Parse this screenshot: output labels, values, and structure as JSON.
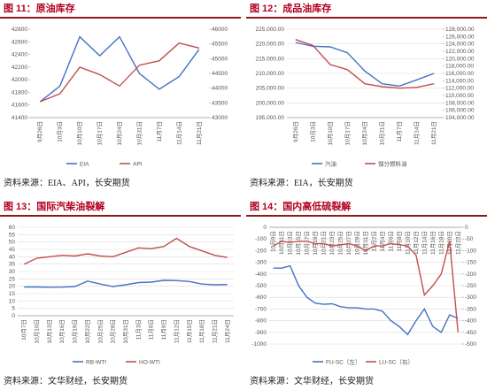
{
  "chart_data": [
    {
      "type": "line",
      "title": "图 11：原油库存",
      "source": "资料来源：EIA、API，长安期货",
      "grid": false,
      "categories": [
        "9月26日",
        "10月3日",
        "10月10日",
        "10月17日",
        "10月24日",
        "10月31日",
        "11月7日",
        "11月14日",
        "11月21日"
      ],
      "ylim": [
        41400,
        42800
      ],
      "yticks": [
        41400,
        41600,
        41800,
        42000,
        42200,
        42400,
        42600,
        42800
      ],
      "y2lim": [
        43000,
        46000
      ],
      "y2ticks": [
        43000,
        43500,
        44000,
        44500,
        45000,
        45500,
        46000
      ],
      "series": [
        {
          "name": "EIA",
          "color": "#4472c4",
          "axis": "y",
          "values": [
            41650,
            41900,
            42680,
            42380,
            42680,
            42100,
            41850,
            42050,
            42480
          ]
        },
        {
          "name": "API",
          "color": "#c0504d",
          "axis": "y2",
          "values": [
            43540,
            43810,
            44710,
            44460,
            44070,
            44780,
            44930,
            45530,
            45360
          ]
        }
      ]
    },
    {
      "type": "line",
      "title": "图 12：成品油库存",
      "source": "资料来源：EIA，长安期货",
      "grid": true,
      "categories": [
        "9月26日",
        "10月3日",
        "10月10日",
        "10月17日",
        "10月24日",
        "10月31日",
        "11月7日",
        "11月14日",
        "11月21日"
      ],
      "ylim": [
        195000,
        225000
      ],
      "yticks": [
        {
          "value": 195000,
          "label": "195,000.00"
        },
        {
          "value": 200000,
          "label": "200,000.00"
        },
        {
          "value": 205000,
          "label": "205,000.00"
        },
        {
          "value": 210000,
          "label": "210,000.00"
        },
        {
          "value": 215000,
          "label": "215,000.00"
        },
        {
          "value": 220000,
          "label": "220,000.00"
        },
        {
          "value": 225000,
          "label": "225,000.00"
        }
      ],
      "y2lim": [
        104000,
        128000
      ],
      "y2ticks": [
        {
          "value": 104000,
          "label": "104,000.00"
        },
        {
          "value": 106000,
          "label": "106,000.00"
        },
        {
          "value": 108000,
          "label": "108,000.00"
        },
        {
          "value": 110000,
          "label": "110,000.00"
        },
        {
          "value": 112000,
          "label": "112,000.00"
        },
        {
          "value": 114000,
          "label": "114,000.00"
        },
        {
          "value": 116000,
          "label": "116,000.00"
        },
        {
          "value": 118000,
          "label": "118,000.00"
        },
        {
          "value": 120000,
          "label": "120,000.00"
        },
        {
          "value": 122000,
          "label": "122,000.00"
        },
        {
          "value": 124000,
          "label": "124,000.00"
        },
        {
          "value": 126000,
          "label": "126,000.00"
        },
        {
          "value": 128000,
          "label": "128,000.00"
        }
      ],
      "series": [
        {
          "name": "汽油",
          "color": "#4472c4",
          "axis": "y",
          "values": [
            220500,
            219200,
            219000,
            217000,
            210800,
            206500,
            205700,
            207800,
            210000
          ]
        },
        {
          "name": "馏分燃料油",
          "color": "#c0504d",
          "axis": "y2",
          "values": [
            125200,
            123600,
            118400,
            117000,
            113200,
            112400,
            112000,
            112200,
            113200
          ]
        }
      ]
    },
    {
      "type": "line",
      "title": "图 13：国际汽柴油裂解",
      "source": "资料来源：文华财经，长安期货",
      "grid": true,
      "categories": [
        "10月7日",
        "10月10日",
        "10月13日",
        "10月16日",
        "10月19日",
        "10月22日",
        "10月25日",
        "10月28日",
        "10月31日",
        "11月3日",
        "11月6日",
        "11月9日",
        "11月12日",
        "11月15日",
        "11月18日",
        "11月21日",
        "11月24日"
      ],
      "ylim": [
        0,
        60
      ],
      "yticks": [
        0,
        5,
        10,
        15,
        20,
        25,
        30,
        35,
        40,
        45,
        50,
        55,
        60
      ],
      "series": [
        {
          "name": "RB-WTI",
          "color": "#4472c4",
          "axis": "y",
          "values": [
            19.5,
            19.5,
            19.3,
            19.4,
            19.8,
            23.5,
            21.5,
            19.8,
            21.0,
            22.5,
            22.8,
            24.0,
            23.8,
            23.2,
            21.5,
            21.0,
            21.2
          ]
        },
        {
          "name": "HO-WTI",
          "color": "#c0504d",
          "axis": "y",
          "values": [
            35,
            39,
            40,
            41,
            40.5,
            42,
            40.5,
            40,
            43,
            46,
            45.5,
            47,
            52.5,
            47,
            44,
            41,
            39.5
          ]
        }
      ]
    },
    {
      "type": "line",
      "title": "图 14：国内高低硫裂解",
      "source": "资料来源：文华财经，长安期货",
      "grid": true,
      "xaxis_top": true,
      "categories": [
        "10月9日",
        "10月11日",
        "10月13日",
        "10月15日",
        "10月17日",
        "10月19日",
        "10月21日",
        "10月23日",
        "10月25日",
        "10月27日",
        "10月29日",
        "10月31日",
        "11月2日",
        "11月4日",
        "11月6日",
        "11月8日",
        "11月10日",
        "11月12日",
        "11月14日",
        "11月16日",
        "11月18日",
        "11月20日",
        "11月22日"
      ],
      "ylim": [
        -1000,
        0
      ],
      "yticks": [
        0,
        -100,
        -200,
        -300,
        -400,
        -500,
        -600,
        -700,
        -800,
        -900,
        -1000
      ],
      "y2lim": [
        -500,
        0
      ],
      "y2ticks": [
        0,
        -50,
        -100,
        -150,
        -200,
        -250,
        -300,
        -350,
        -400,
        -450,
        -500
      ],
      "series": [
        {
          "name": "FU-SC（左）",
          "color": "#4472c4",
          "axis": "y",
          "values": [
            -350,
            -350,
            -330,
            -500,
            -600,
            -650,
            -660,
            -655,
            -680,
            -690,
            -690,
            -700,
            -700,
            -720,
            -800,
            -850,
            -920,
            -800,
            -700,
            -850,
            -900,
            -750,
            -780
          ]
        },
        {
          "name": "LU-SC（右）",
          "color": "#c0504d",
          "axis": "y2",
          "values": [
            -80,
            -60,
            -65,
            -60,
            -60,
            -70,
            -70,
            -80,
            -75,
            -70,
            -80,
            -100,
            -80,
            -80,
            -70,
            -75,
            -80,
            -120,
            -290,
            -250,
            -200,
            -60,
            -450
          ]
        }
      ]
    }
  ]
}
